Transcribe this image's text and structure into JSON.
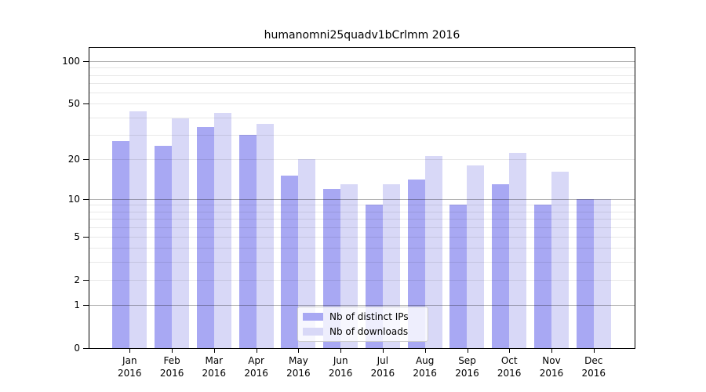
{
  "title": "humanomni25quadv1bCrlmm 2016",
  "chart_data": {
    "type": "bar",
    "title": "humanomni25quadv1bCrlmm 2016",
    "categories": [
      "Jan 2016",
      "Feb 2016",
      "Mar 2016",
      "Apr 2016",
      "May 2016",
      "Jun 2016",
      "Jul 2016",
      "Aug 2016",
      "Sep 2016",
      "Oct 2016",
      "Nov 2016",
      "Dec 2016"
    ],
    "series": [
      {
        "name": "Nb of distinct IPs",
        "color": "#a8a8f3",
        "values": [
          27,
          25,
          34,
          30,
          15,
          12,
          9,
          14,
          9,
          13,
          9,
          10
        ]
      },
      {
        "name": "Nb of downloads",
        "color": "#d8d8f7",
        "values": [
          44,
          39,
          43,
          36,
          20,
          13,
          13,
          21,
          18,
          22,
          16,
          10
        ]
      }
    ],
    "xlabel": "",
    "ylabel": "",
    "yscale": "log10(1+y)",
    "ylim": [
      0,
      127
    ],
    "yticks": [
      0,
      1,
      2,
      5,
      10,
      20,
      50,
      100
    ],
    "major_gridlines": [
      1,
      10,
      100
    ],
    "minor_gridlines": [
      2,
      3,
      4,
      5,
      6,
      7,
      8,
      9,
      20,
      30,
      40,
      50,
      60,
      70,
      80,
      90
    ],
    "grid": "on",
    "grid_above_bars": true,
    "legend_position": "lower center"
  },
  "colors": {
    "bar_distinct_ips": "#a8a8f3",
    "bar_downloads": "#d8d8f7",
    "major_grid": "#b0b0b0",
    "minor_grid": "#e8e8e8",
    "axis": "#000000",
    "legend_border": "#cccccc",
    "background": "#ffffff"
  }
}
